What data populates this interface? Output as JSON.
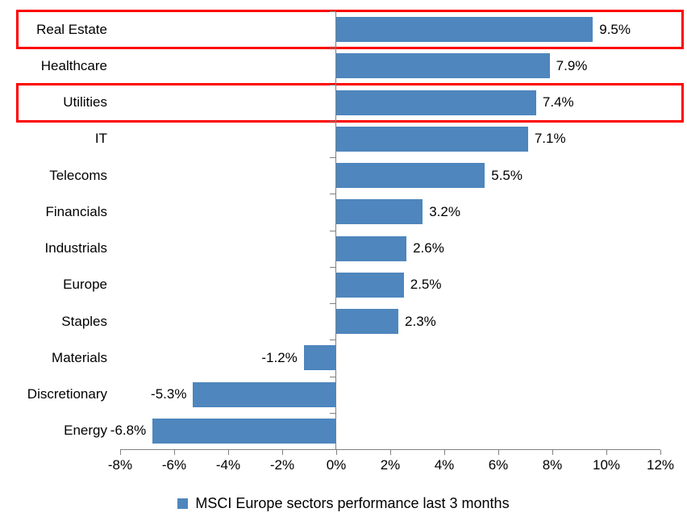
{
  "chart_data": {
    "type": "bar",
    "orientation": "horizontal",
    "title": "",
    "categories": [
      "Real Estate",
      "Healthcare",
      "Utilities",
      "IT",
      "Telecoms",
      "Financials",
      "Industrials",
      "Europe",
      "Staples",
      "Materials",
      "Discretionary",
      "Energy"
    ],
    "values": [
      9.5,
      7.9,
      7.4,
      7.1,
      5.5,
      3.2,
      2.6,
      2.5,
      2.3,
      -1.2,
      -5.3,
      -6.8
    ],
    "value_labels": [
      "9.5%",
      "7.9%",
      "7.4%",
      "7.1%",
      "5.5%",
      "3.2%",
      "2.6%",
      "2.5%",
      "2.3%",
      "-1.2%",
      "-5.3%",
      "-6.8%"
    ],
    "xlim": [
      -8,
      12
    ],
    "x_tick_values": [
      -8,
      -6,
      -4,
      -2,
      0,
      2,
      4,
      6,
      8,
      10,
      12
    ],
    "x_tick_labels": [
      "-8%",
      "-6%",
      "-4%",
      "-2%",
      "0%",
      "2%",
      "4%",
      "6%",
      "8%",
      "10%",
      "12%"
    ],
    "grid": false,
    "legend": "MSCI Europe sectors performance last 3 months",
    "legend_position": "bottom",
    "highlighted_categories": [
      "Real Estate",
      "Utilities"
    ],
    "colors": {
      "bar": "#4E86BD",
      "axis": "#808080",
      "highlight": "#FF0000",
      "text": "#000000",
      "background": "#FFFFFF"
    }
  }
}
